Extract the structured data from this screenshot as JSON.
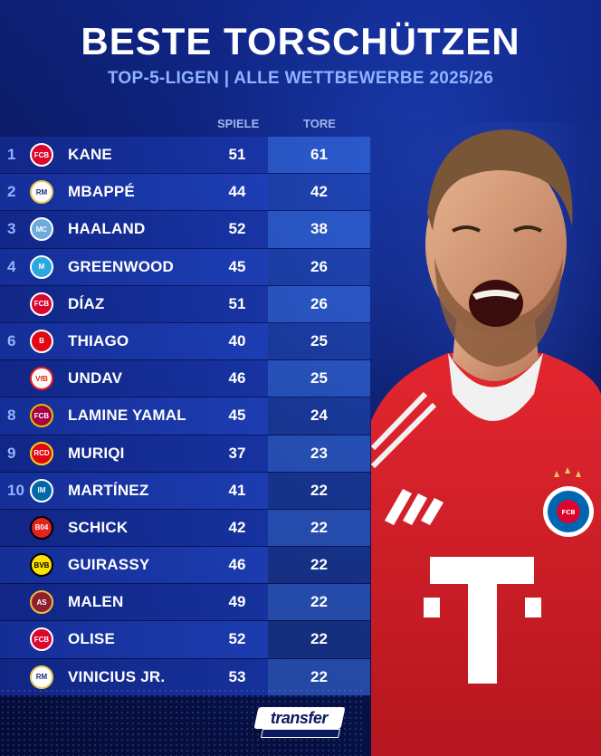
{
  "header": {
    "title": "BESTE TORSCHÜTZEN",
    "subtitle": "TOP-5-LIGEN | ALLE WETTBEWERBE 2025/26"
  },
  "columns": {
    "spiele": "SPIELE",
    "tore": "TORE"
  },
  "rows": [
    {
      "rank": "1",
      "club_icon": "bayern-munich-icon",
      "name": "KANE",
      "spiele": "51",
      "tore": "61"
    },
    {
      "rank": "2",
      "club_icon": "real-madrid-icon",
      "name": "MBAPPÉ",
      "spiele": "44",
      "tore": "42"
    },
    {
      "rank": "3",
      "club_icon": "manchester-city-icon",
      "name": "HAALAND",
      "spiele": "52",
      "tore": "38"
    },
    {
      "rank": "4",
      "club_icon": "marseille-icon",
      "name": "GREENWOOD",
      "spiele": "45",
      "tore": "26"
    },
    {
      "rank": "",
      "club_icon": "bayern-munich-icon",
      "name": "DÍAZ",
      "spiele": "51",
      "tore": "26"
    },
    {
      "rank": "6",
      "club_icon": "brentford-icon",
      "name": "THIAGO",
      "spiele": "40",
      "tore": "25"
    },
    {
      "rank": "",
      "club_icon": "vfb-stuttgart-icon",
      "name": "UNDAV",
      "spiele": "46",
      "tore": "25"
    },
    {
      "rank": "8",
      "club_icon": "fc-barcelona-icon",
      "name": "LAMINE YAMAL",
      "spiele": "45",
      "tore": "24"
    },
    {
      "rank": "9",
      "club_icon": "mallorca-icon",
      "name": "MURIQI",
      "spiele": "37",
      "tore": "23"
    },
    {
      "rank": "10",
      "club_icon": "inter-milan-icon",
      "name": "MARTÍNEZ",
      "spiele": "41",
      "tore": "22"
    },
    {
      "rank": "",
      "club_icon": "bayer-leverkusen-icon",
      "name": "SCHICK",
      "spiele": "42",
      "tore": "22"
    },
    {
      "rank": "",
      "club_icon": "borussia-dortmund-icon",
      "name": "GUIRASSY",
      "spiele": "46",
      "tore": "22"
    },
    {
      "rank": "",
      "club_icon": "as-roma-icon",
      "name": "MALEN",
      "spiele": "49",
      "tore": "22"
    },
    {
      "rank": "",
      "club_icon": "bayern-munich-icon",
      "name": "OLISE",
      "spiele": "52",
      "tore": "22"
    },
    {
      "rank": "",
      "club_icon": "real-madrid-icon",
      "name": "VINICIUS JR.",
      "spiele": "53",
      "tore": "22"
    }
  ],
  "brand": {
    "name": "transfer"
  },
  "colors": {
    "background": "#0d1f72",
    "tore_column": "#3a73e6",
    "accent_text": "#8fb3ff",
    "jersey_red": "#e3262f"
  }
}
